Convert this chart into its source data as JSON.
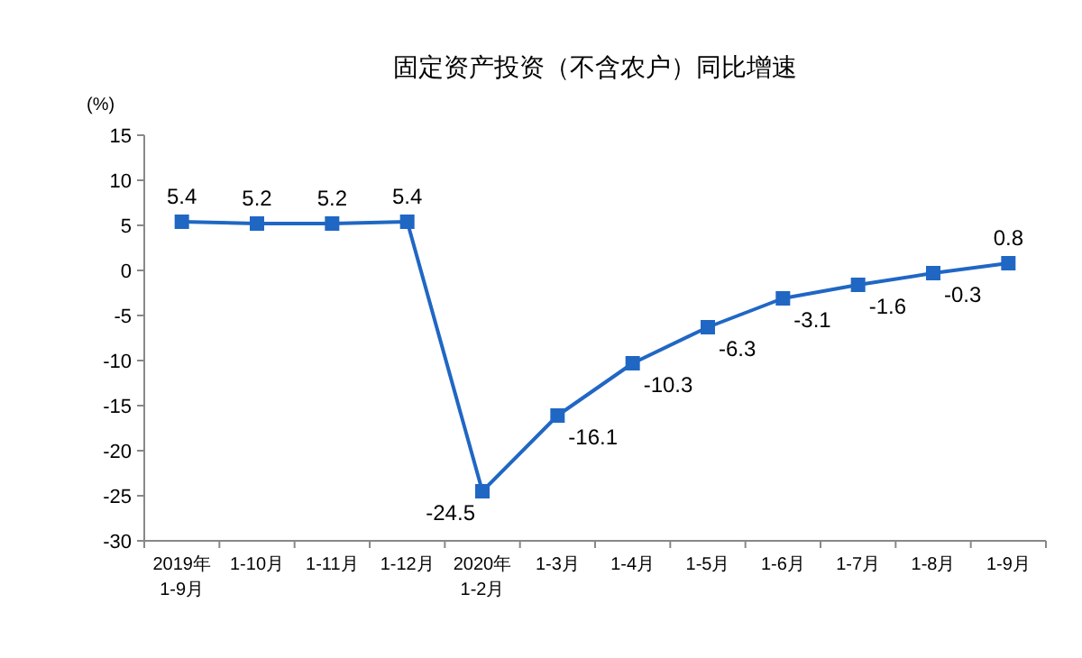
{
  "chart_data": {
    "type": "line",
    "title": "固定资产投资（不含农户）同比增速",
    "ylabel": "(%)",
    "categories": [
      "2019年\n1-9月",
      "1-10月",
      "1-11月",
      "1-12月",
      "2020年\n1-2月",
      "1-3月",
      "1-4月",
      "1-5月",
      "1-6月",
      "1-7月",
      "1-8月",
      "1-9月"
    ],
    "series": [
      {
        "color": "#2067c4",
        "values": [
          5.4,
          5.2,
          5.2,
          5.4,
          -24.5,
          -16.1,
          -10.3,
          -6.3,
          -3.1,
          -1.6,
          -0.3,
          0.8
        ]
      }
    ],
    "ylim": [
      -30,
      15
    ],
    "yticks": [
      -30,
      -25,
      -20,
      -15,
      -10,
      -5,
      0,
      5,
      10,
      15
    ],
    "marker": "square",
    "line_style": "solid",
    "data_labels": true
  }
}
